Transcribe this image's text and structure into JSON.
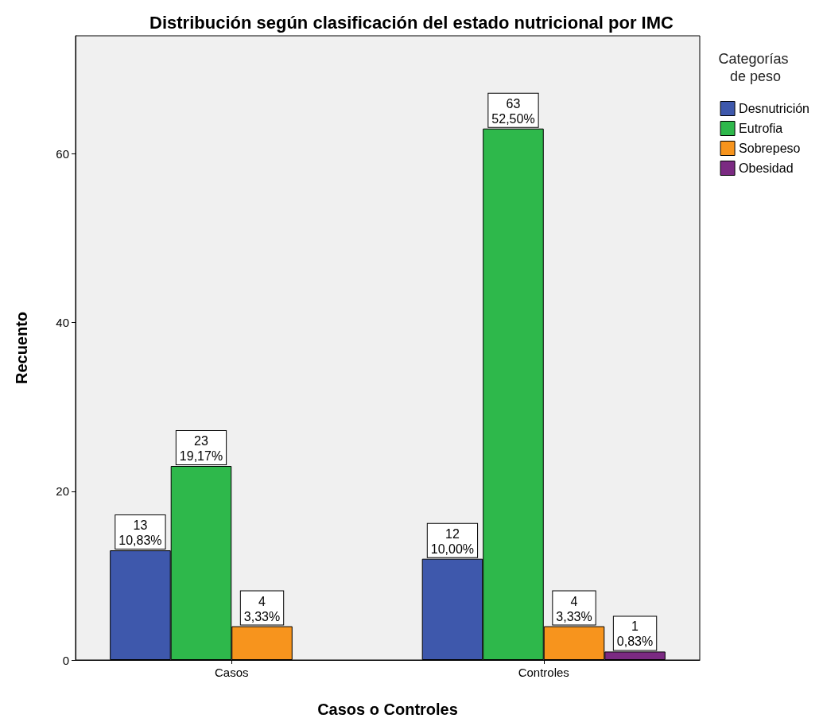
{
  "chart_data": {
    "type": "bar",
    "title": "Distribución según clasificación del estado nutricional por IMC",
    "xlabel": "Casos o Controles",
    "ylabel": "Recuento",
    "legend_title": "Categorías de peso",
    "legend": "top right",
    "categories": [
      "Casos",
      "Controles"
    ],
    "series": [
      {
        "name": "Desnutrición",
        "color": "#3e58ac",
        "values": [
          13,
          12
        ],
        "value_labels": [
          "13\n10,83%",
          "12\n10,00%"
        ]
      },
      {
        "name": "Eutrofia",
        "color": "#2eb84b",
        "values": [
          23,
          63
        ],
        "value_labels": [
          "23\n19,17%",
          "63\n52,50%"
        ]
      },
      {
        "name": "Sobrepeso",
        "color": "#f7941d",
        "values": [
          4,
          4
        ],
        "value_labels": [
          "4\n3,33%",
          "4\n3,33%"
        ]
      },
      {
        "name": "Obesidad",
        "color": "#7b2a82",
        "values": [
          null,
          1
        ],
        "value_labels": [
          null,
          "1\n0,83%"
        ]
      }
    ],
    "ylim": [
      0,
      74
    ],
    "yticks": [
      0,
      20,
      40,
      60
    ]
  }
}
